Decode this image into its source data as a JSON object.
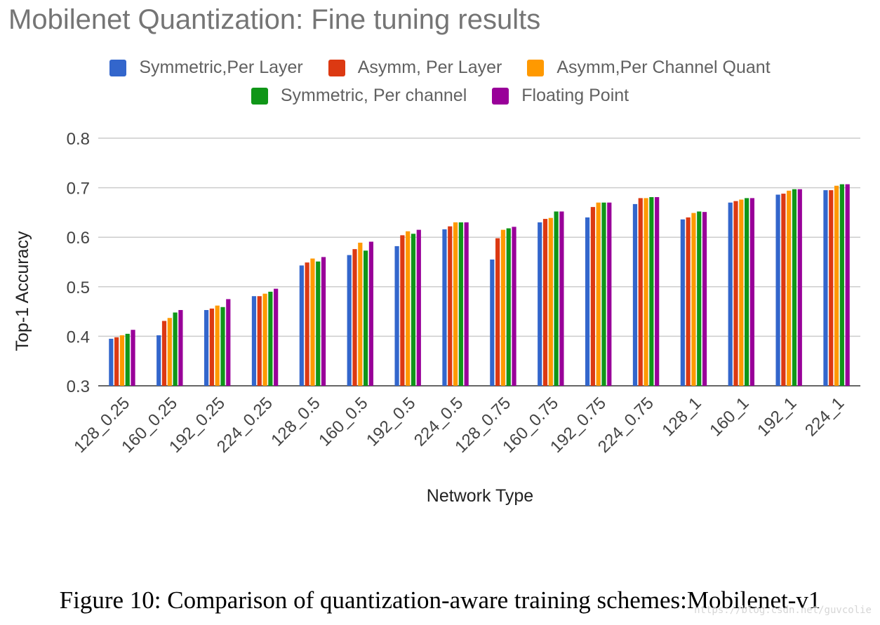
{
  "caption": "Figure 10: Comparison of quantization-aware training schemes:Mobilenet-v1",
  "watermark": "https://blog.csdn.net/guvcolie",
  "chart_data": {
    "type": "bar",
    "title": "Mobilenet Quantization: Fine tuning results",
    "xlabel": "Network Type",
    "ylabel": "Top-1 Accuracy",
    "ylim": [
      0.3,
      0.8
    ],
    "yticks": [
      "0.3",
      "0.4",
      "0.5",
      "0.6",
      "0.7",
      "0.8"
    ],
    "grid": true,
    "legend_position": "top",
    "categories": [
      "128_0.25",
      "160_0.25",
      "192_0.25",
      "224_0.25",
      "128_0.5",
      "160_0.5",
      "192_0.5",
      "224_0.5",
      "128_0.75",
      "160_0.75",
      "192_0.75",
      "224_0.75",
      "128_1",
      "160_1",
      "192_1",
      "224_1"
    ],
    "series": [
      {
        "name": "Symmetric,Per Layer",
        "color": "#3366cc",
        "values": [
          0.395,
          0.402,
          0.453,
          0.481,
          0.543,
          0.564,
          0.582,
          0.616,
          0.555,
          0.63,
          0.64,
          0.667,
          0.636,
          0.67,
          0.686,
          0.695
        ]
      },
      {
        "name": "Asymm, Per Layer",
        "color": "#dc3912",
        "values": [
          0.398,
          0.431,
          0.456,
          0.481,
          0.549,
          0.576,
          0.604,
          0.622,
          0.598,
          0.637,
          0.661,
          0.679,
          0.64,
          0.673,
          0.688,
          0.695
        ]
      },
      {
        "name": "Asymm,Per Channel Quant",
        "color": "#ff9900",
        "values": [
          0.402,
          0.437,
          0.462,
          0.486,
          0.557,
          0.589,
          0.612,
          0.63,
          0.615,
          0.639,
          0.67,
          0.679,
          0.649,
          0.676,
          0.694,
          0.704
        ]
      },
      {
        "name": "Symmetric, Per channel",
        "color": "#109618",
        "values": [
          0.405,
          0.448,
          0.459,
          0.49,
          0.551,
          0.573,
          0.607,
          0.63,
          0.618,
          0.652,
          0.67,
          0.681,
          0.652,
          0.679,
          0.697,
          0.707
        ]
      },
      {
        "name": "Floating Point",
        "color": "#990099",
        "values": [
          0.413,
          0.453,
          0.475,
          0.496,
          0.56,
          0.591,
          0.615,
          0.63,
          0.621,
          0.652,
          0.67,
          0.681,
          0.651,
          0.679,
          0.697,
          0.707
        ]
      }
    ]
  }
}
